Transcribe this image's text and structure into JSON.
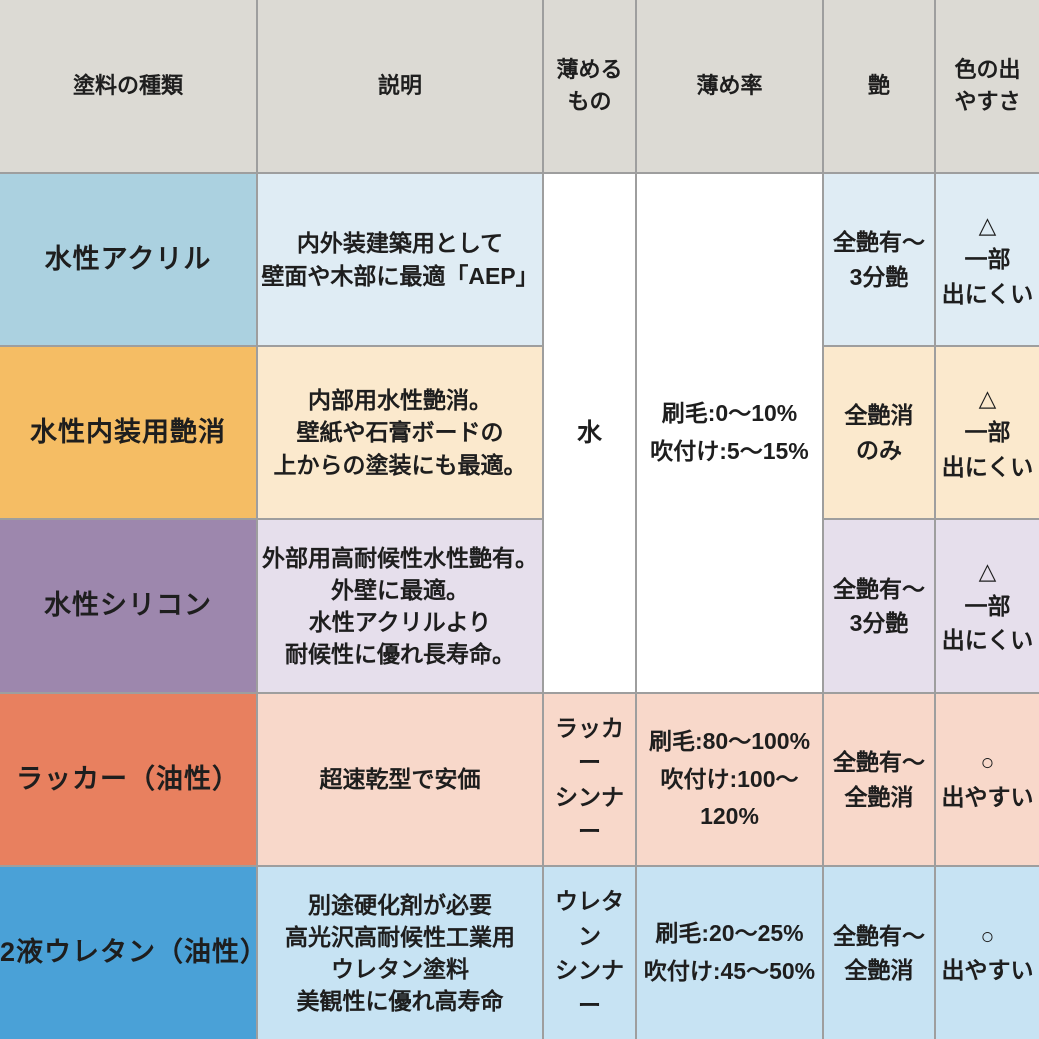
{
  "table": {
    "grid_line_color": "#9e9e9e",
    "header": {
      "bg": "#dcdad4",
      "paint_type": "塗料の種類",
      "description": "説明",
      "thinner": "薄める\nもの",
      "dilution_rate": "薄め率",
      "gloss": "艶",
      "color_ease": "色の出\nやすさ"
    },
    "shared": {
      "bg": "#ffffff",
      "thinner_rows_1_3": "水",
      "dilution_rows_1_3": "刷毛:0〜10%\n吹付け:5〜15%"
    },
    "rows": [
      {
        "name": "水性アクリル",
        "name_bg": "#abd1e0",
        "light_bg": "#dfecf4",
        "description": "内外装建築用として\n壁面や木部に最適「AEP」",
        "gloss": "全艶有〜\n3分艶",
        "color_ease": "△\n一部\n出にくい"
      },
      {
        "name": "水性内装用艶消",
        "name_bg": "#f5bd64",
        "light_bg": "#fbe9cd",
        "description": "内部用水性艶消。\n壁紙や石膏ボードの\n上からの塗装にも最適。",
        "gloss": "全艶消\nのみ",
        "color_ease": "△\n一部\n出にくい"
      },
      {
        "name": "水性シリコン",
        "name_bg": "#9d87ad",
        "light_bg": "#e6dfec",
        "description": "外部用高耐候性水性艶有。\n外壁に最適。\n水性アクリルより\n耐候性に優れ長寿命。",
        "gloss": "全艶有〜\n3分艶",
        "color_ease": "△\n一部\n出にくい"
      },
      {
        "name": "ラッカー（油性）",
        "name_bg": "#e8805f",
        "light_bg": "#f8d8ca",
        "description": "超速乾型で安価",
        "thinner": "ラッカー\nシンナー",
        "dilution": "刷毛:80〜100%\n吹付け:100〜120%",
        "gloss": "全艶有〜\n全艶消",
        "color_ease": "○\n出やすい"
      },
      {
        "name": "2液ウレタン（油性）",
        "name_bg": "#4aa1d7",
        "light_bg": "#c7e3f3",
        "description": "別途硬化剤が必要\n高光沢高耐候性工業用\nウレタン塗料\n美観性に優れ高寿命",
        "thinner": "ウレタン\nシンナー",
        "dilution": "刷毛:20〜25%\n吹付け:45〜50%",
        "gloss": "全艶有〜\n全艶消",
        "color_ease": "○\n出やすい"
      }
    ]
  }
}
